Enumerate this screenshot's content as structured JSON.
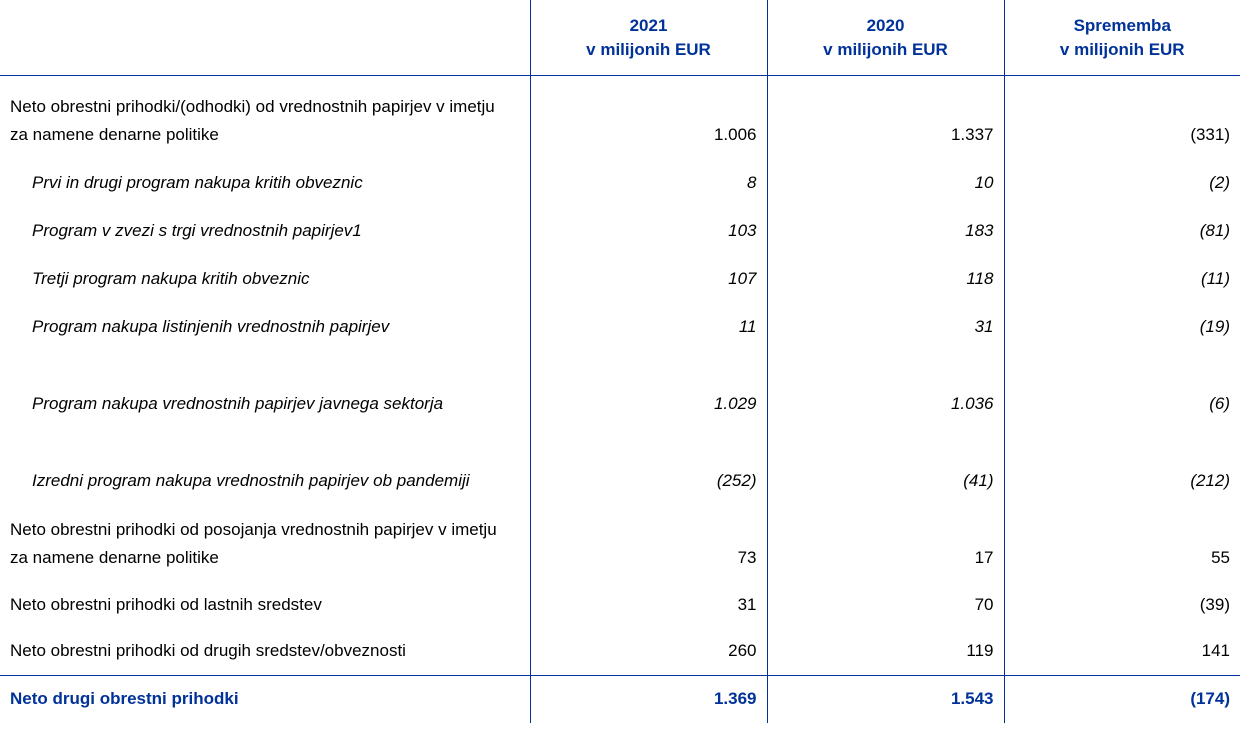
{
  "header": {
    "columns": [
      [
        "2021",
        "v milijonih EUR"
      ],
      [
        "2020",
        "v milijonih EUR"
      ],
      [
        "Sprememba",
        "v milijonih EUR"
      ]
    ]
  },
  "table": {
    "rows": [
      {
        "cells": [
          "Neto obrestni prihodki/(odhodki) od vrednostnih papirjev v imetju za namene denarne politike",
          "1.006",
          "1.337",
          "(331)"
        ],
        "items": [
          [
            "Prvi in drugi program nakupa kritih obveznic",
            "8",
            "10",
            "(2)"
          ],
          [
            "Program v zvezi s trgi vrednostnih papirjev1",
            "103",
            "183",
            "(81)"
          ],
          [
            "Tretji program nakupa kritih obveznic",
            "107",
            "118",
            "(11)"
          ],
          [
            "Program nakupa listinjenih vrednostnih papirjev",
            "11",
            "31",
            "(19)"
          ],
          [
            "Program nakupa vrednostnih papirjev javnega sektorja",
            "1.029",
            "1.036",
            "(6)"
          ],
          [
            "Izredni program nakupa vrednostnih papirjev ob pandemiji",
            "(252)",
            "(41)",
            "(212)"
          ]
        ]
      },
      {
        "cells": [
          "Neto obrestni prihodki od posojanja vrednostnih papirjev v imetju za namene denarne politike",
          "73",
          "17",
          "55"
        ]
      },
      {
        "cells": [
          "Neto obrestni prihodki od lastnih sredstev",
          "31",
          "70",
          "(39)"
        ]
      },
      {
        "cells": [
          "Neto obrestni prihodki od drugih sredstev/obveznosti",
          "260",
          "119",
          "141"
        ]
      }
    ],
    "total": [
      "Neto drugi obrestni prihodki",
      "1.369",
      "1.543",
      "(174)"
    ]
  }
}
